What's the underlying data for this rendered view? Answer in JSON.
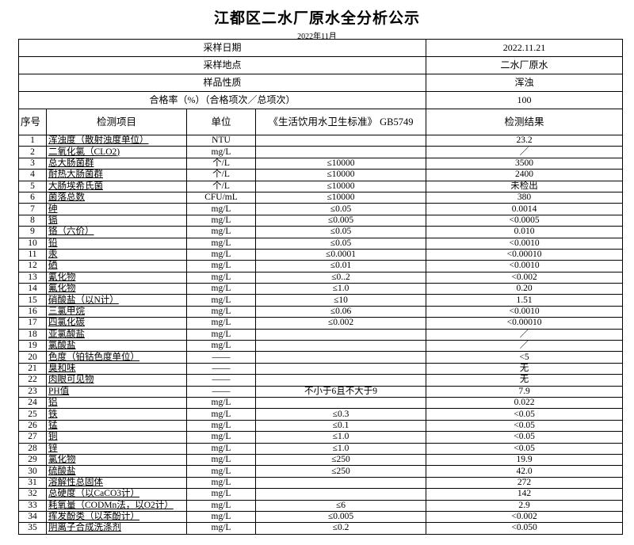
{
  "title": "江都区二水厂原水全分析公示",
  "subtitle": "2022年11月",
  "meta": [
    {
      "label": "采样日期",
      "value": "2022.11.21"
    },
    {
      "label": "采样地点",
      "value": "二水厂原水"
    },
    {
      "label": "样品性质",
      "value": "浑浊"
    },
    {
      "label": "合格率（%）（合格项次／总项次）",
      "value": "100"
    }
  ],
  "headers": [
    "序号",
    "检测项目",
    "单位",
    "《生活饮用水卫生标准》 GB5749",
    "检测结果"
  ],
  "rows": [
    [
      "1",
      "浑浊度（散射浊度单位）",
      "NTU",
      "",
      "23.2"
    ],
    [
      "2",
      "二氧化氯（CLO2)",
      "mg/L",
      "",
      "／"
    ],
    [
      "3",
      "总大肠菌群",
      "个/L",
      "≤10000",
      "3500"
    ],
    [
      "4",
      "耐热大肠菌群",
      "个/L",
      "≤10000",
      "2400"
    ],
    [
      "5",
      "大肠埃希氏菌",
      "个/L",
      "≤10000",
      "未检出"
    ],
    [
      "6",
      "菌落总数",
      "CFU/mL",
      "≤10000",
      "380"
    ],
    [
      "7",
      "砷",
      "mg/L",
      "≤0.05",
      "0.0014"
    ],
    [
      "8",
      "镉",
      "mg/L",
      "≤0.005",
      "<0.0005"
    ],
    [
      "9",
      "铬（六价）",
      "mg/L",
      "≤0.05",
      "0.010"
    ],
    [
      "10",
      "铅",
      "mg/L",
      "≤0.05",
      "<0.0010"
    ],
    [
      "11",
      "汞",
      "mg/L",
      "≤0.0001",
      "<0.00010"
    ],
    [
      "12",
      "硒",
      "mg/L",
      "≤0.01",
      "<0.0010"
    ],
    [
      "13",
      "氰化物",
      "mg/L",
      "≤0..2",
      "<0.002"
    ],
    [
      "14",
      "氟化物",
      "mg/L",
      "≤1.0",
      "0.20"
    ],
    [
      "15",
      "硝酸盐（以N计）",
      "mg/L",
      "≤10",
      "1.51"
    ],
    [
      "16",
      "三氯甲烷",
      "mg/L",
      "≤0.06",
      "<0.0010"
    ],
    [
      "17",
      "四氯化碳",
      "mg/L",
      "≤0.002",
      "<0.00010"
    ],
    [
      "18",
      "亚氯酸盐",
      "mg/L",
      "",
      "／"
    ],
    [
      "19",
      "氯酸盐",
      "mg/L",
      "",
      "／"
    ],
    [
      "20",
      "色度（铂钴色度单位）",
      "——",
      "",
      "<5"
    ],
    [
      "21",
      "臭和味",
      "——",
      "",
      "无"
    ],
    [
      "22",
      "肉眼可见物",
      "——",
      "",
      "无"
    ],
    [
      "23",
      "PH值",
      "——",
      "不小于6且不大于9",
      "7.9"
    ],
    [
      "24",
      "铝",
      "mg/L",
      "",
      "0.022"
    ],
    [
      "25",
      "铁",
      "mg/L",
      "≤0.3",
      "<0.05"
    ],
    [
      "26",
      "锰",
      "mg/L",
      "≤0.1",
      "<0.05"
    ],
    [
      "27",
      "铜",
      "mg/L",
      "≤1.0",
      "<0.05"
    ],
    [
      "28",
      "锌",
      "mg/L",
      "≤1.0",
      "<0.05"
    ],
    [
      "29",
      "氯化物",
      "mg/L",
      "≤250",
      "19.9"
    ],
    [
      "30",
      "硫酸盐",
      "mg/L",
      "≤250",
      "42.0"
    ],
    [
      "31",
      "溶解性总固体",
      "mg/L",
      "",
      "272"
    ],
    [
      "32",
      "总硬度（以CaCO3计）",
      "mg/L",
      "",
      "142"
    ],
    [
      "33",
      "耗氧量（CODMn法，以O2计）",
      "mg/L",
      "≤6",
      "2.9"
    ],
    [
      "34",
      "挥发酚类（以苯酚计）",
      "mg/L",
      "≤0.005",
      "<0.002"
    ],
    [
      "35",
      "阴离子合成洗涤剂",
      "mg/L",
      "≤0.2",
      "<0.050"
    ]
  ]
}
